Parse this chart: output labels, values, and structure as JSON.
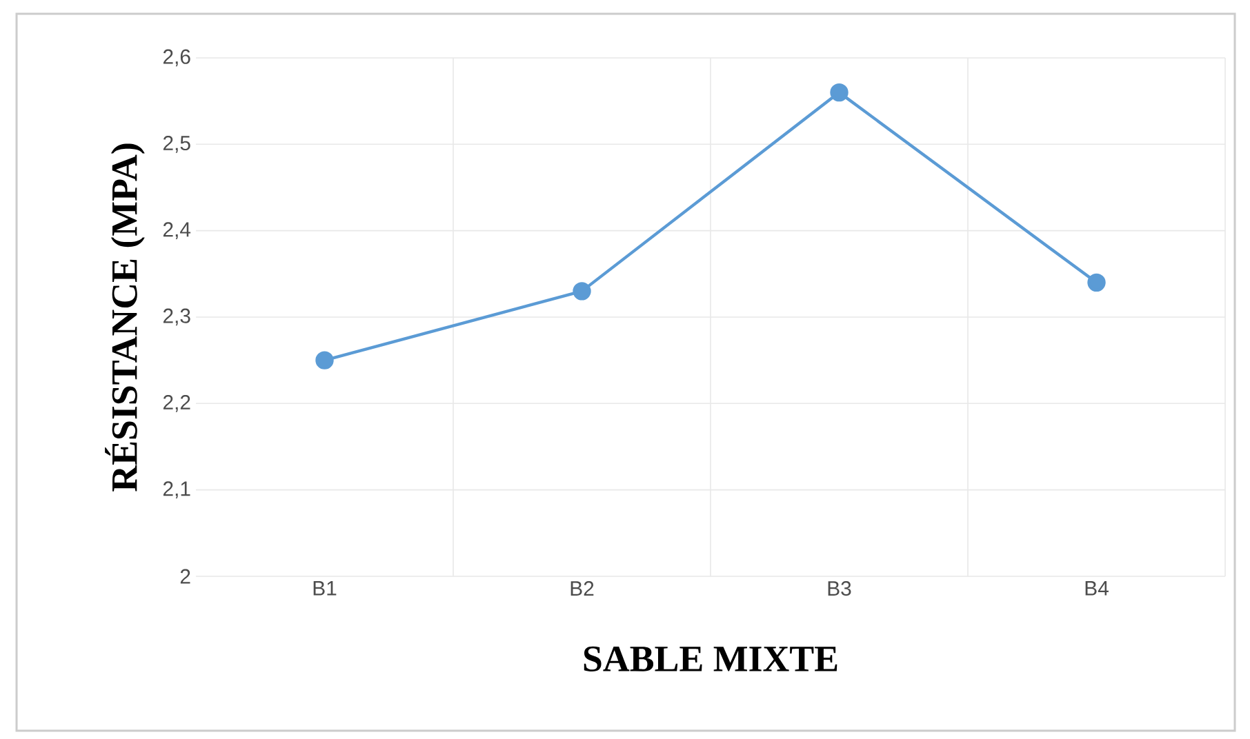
{
  "chart_data": {
    "type": "line",
    "xlabel": "SABLE MIXTE",
    "ylabel": "RÉSISTANCE (MPA)",
    "categories": [
      "B1",
      "B2",
      "B3",
      "B4"
    ],
    "series": [
      {
        "color": "#5b9bd5",
        "values": [
          2.25,
          2.33,
          2.56,
          2.34
        ]
      }
    ],
    "ylim": [
      2,
      2.6
    ],
    "yticks": [
      2,
      {
        "value": 2.1,
        "label": "2,1"
      },
      {
        "value": 2.2,
        "label": "2,2"
      },
      {
        "value": 2.3,
        "label": "2,3"
      },
      {
        "value": 2.4,
        "label": "2,4"
      },
      {
        "value": 2.5,
        "label": "2,5"
      },
      {
        "value": 2.6,
        "label": "2,6"
      }
    ],
    "grid": true,
    "marker": "circle",
    "line_style": "solid"
  }
}
